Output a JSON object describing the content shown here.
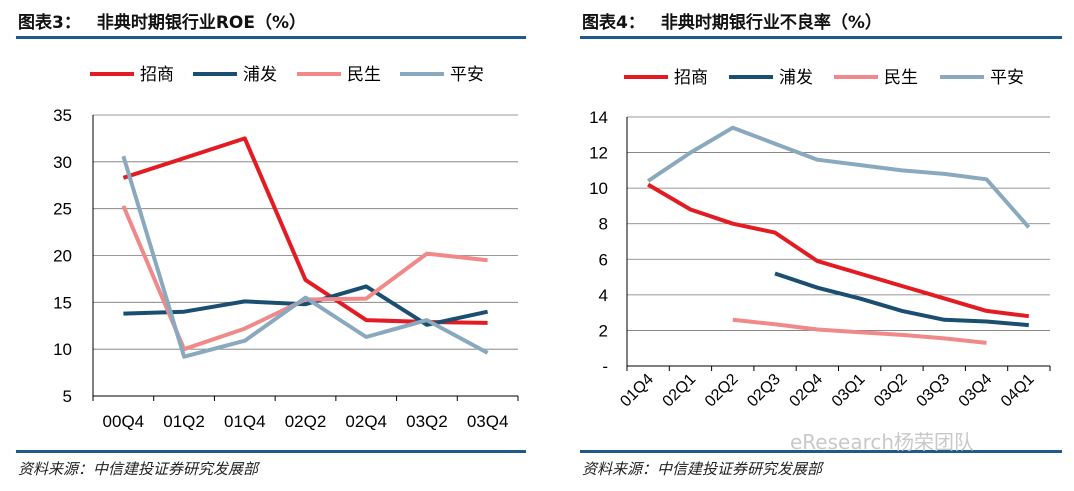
{
  "watermark": "eResearch杨荣团队",
  "colors": {
    "zhaoshang": "#e31b23",
    "pufa": "#1b4f72",
    "minsheng": "#f08a8a",
    "pingan": "#8aa9be",
    "rule": "#1f5a8a"
  },
  "chart_data": [
    {
      "type": "line",
      "label": "图表3：",
      "title": "非典时期银行业ROE（%）",
      "source": "资料来源：中信建投证券研究发展部",
      "categories": [
        "00Q4",
        "01Q2",
        "01Q4",
        "02Q2",
        "02Q4",
        "03Q2",
        "03Q4"
      ],
      "ylim": [
        5,
        35
      ],
      "yticks": [
        "5",
        "10",
        "15",
        "20",
        "25",
        "30",
        "35"
      ],
      "legend_position": "top",
      "grid": true,
      "series": [
        {
          "name": "招商",
          "color_key": "zhaoshang",
          "values": [
            28.3,
            30.4,
            32.5,
            17.4,
            13.1,
            12.9,
            12.8
          ]
        },
        {
          "name": "浦发",
          "color_key": "pufa",
          "values": [
            13.8,
            14.0,
            15.1,
            14.8,
            16.7,
            12.6,
            14.0
          ]
        },
        {
          "name": "民生",
          "color_key": "minsheng",
          "values": [
            25.3,
            10.0,
            12.2,
            15.3,
            15.4,
            20.2,
            19.5
          ]
        },
        {
          "name": "平安",
          "color_key": "pingan",
          "values": [
            30.6,
            9.2,
            10.9,
            15.5,
            11.3,
            13.1,
            9.6
          ]
        }
      ]
    },
    {
      "type": "line",
      "label": "图表4：",
      "title": "非典时期银行业不良率（%）",
      "source": "资料来源：中信建投证券研究发展部",
      "categories": [
        "01Q4",
        "02Q1",
        "02Q2",
        "02Q3",
        "02Q4",
        "03Q1",
        "03Q2",
        "03Q3",
        "03Q4",
        "04Q1"
      ],
      "ylim": [
        0,
        14
      ],
      "yticks": [
        "-",
        "2",
        "4",
        "6",
        "8",
        "10",
        "12",
        "14"
      ],
      "legend_position": "top",
      "grid": true,
      "series": [
        {
          "name": "招商",
          "color_key": "zhaoshang",
          "values": [
            10.2,
            8.8,
            8.0,
            7.5,
            5.9,
            5.2,
            4.5,
            3.8,
            3.1,
            2.8
          ]
        },
        {
          "name": "浦发",
          "color_key": "pufa",
          "values": [
            null,
            null,
            null,
            5.2,
            4.4,
            3.8,
            3.1,
            2.6,
            2.5,
            2.3
          ]
        },
        {
          "name": "民生",
          "color_key": "minsheng",
          "values": [
            null,
            null,
            2.6,
            2.35,
            2.05,
            1.9,
            1.75,
            1.55,
            1.3,
            null
          ]
        },
        {
          "name": "平安",
          "color_key": "pingan",
          "values": [
            10.4,
            12.0,
            13.4,
            12.5,
            11.6,
            11.3,
            11.0,
            10.8,
            10.5,
            7.8
          ]
        }
      ]
    }
  ]
}
